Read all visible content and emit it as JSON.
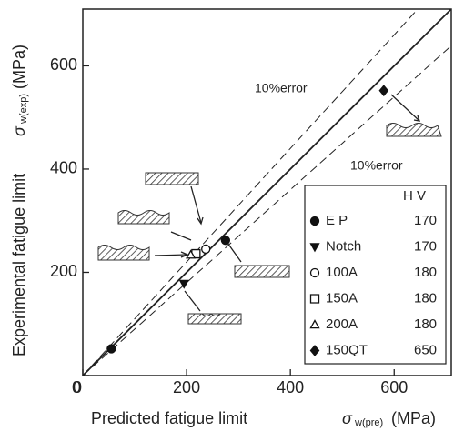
{
  "chart_data": {
    "type": "scatter",
    "x_label": "Predicted fatigue limit",
    "x_symbol": "σ",
    "x_subscript": "w(pre)",
    "x_unit": "(MPa)",
    "y_label": "Experimental fatigue limit",
    "y_symbol": "σ",
    "y_subscript": "w(exp)",
    "y_unit": "(MPa)",
    "xlim": [
      0,
      710
    ],
    "ylim": [
      0,
      710
    ],
    "xticks": [
      0,
      200,
      400,
      600
    ],
    "yticks": [
      0,
      200,
      400,
      600
    ],
    "legend_header": "H V",
    "reference_lines": [
      {
        "slope": 1,
        "style": "solid"
      },
      {
        "slope": 1.1,
        "style": "dashed",
        "label": "10%error"
      },
      {
        "slope": 0.9,
        "style": "dashed",
        "label": "10%error"
      }
    ],
    "series": [
      {
        "name": "E P",
        "hv": 170,
        "marker": "circle",
        "filled": true,
        "color": "#111",
        "x": [
          55,
          275
        ],
        "values": [
          52,
          262
        ]
      },
      {
        "name": "Notch",
        "hv": 170,
        "marker": "triangle-down",
        "filled": true,
        "color": "#111",
        "x": [
          195
        ],
        "values": [
          178
        ]
      },
      {
        "name": "100A",
        "hv": 180,
        "marker": "circle",
        "filled": false,
        "color": "#111",
        "x": [
          237
        ],
        "values": [
          245
        ]
      },
      {
        "name": "150A",
        "hv": 180,
        "marker": "square",
        "filled": false,
        "color": "#111",
        "x": [
          218
        ],
        "values": [
          236
        ]
      },
      {
        "name": "200A",
        "hv": 180,
        "marker": "triangle",
        "filled": false,
        "color": "#111",
        "x": [
          208
        ],
        "values": [
          234
        ]
      },
      {
        "name": "150QT",
        "hv": 650,
        "marker": "diamond",
        "filled": true,
        "color": "#111",
        "x": [
          580
        ],
        "values": [
          552
        ]
      }
    ]
  }
}
